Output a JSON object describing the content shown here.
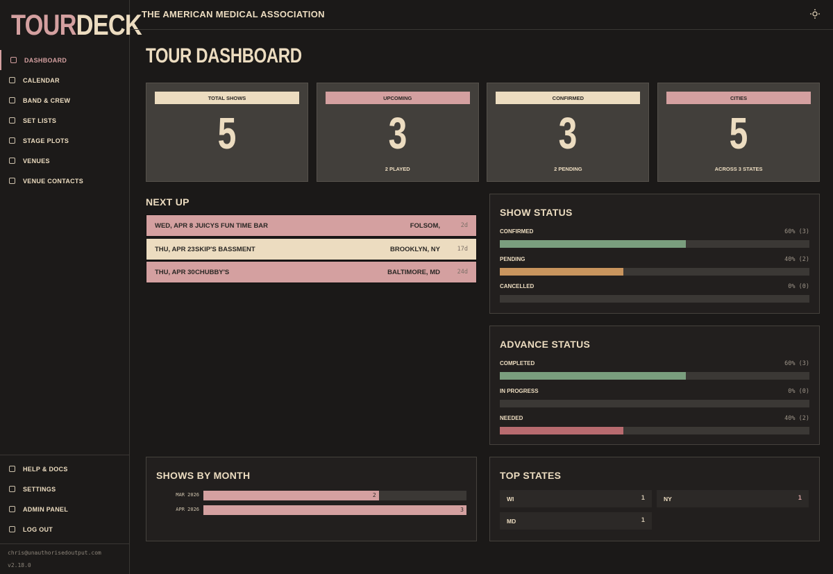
{
  "brand": {
    "first": "TOUR",
    "second": "DECK"
  },
  "nav": [
    "DASHBOARD",
    "CALENDAR",
    "BAND & CREW",
    "SET LISTS",
    "STAGE PLOTS",
    "VENUES",
    "VENUE CONTACTS"
  ],
  "nav_bottom": [
    "HELP & DOCS",
    "SETTINGS",
    "ADMIN PANEL",
    "LOG OUT"
  ],
  "user": {
    "email": "chris@unauthorisedoutput.com",
    "version": "v2.18.0"
  },
  "header": {
    "band": "THE AMERICAN MEDICAL ASSOCIATION"
  },
  "page_title": "TOUR DASHBOARD",
  "stats": [
    {
      "label": "TOTAL SHOWS",
      "value": 5
    },
    {
      "label": "UPCOMING",
      "value": 3,
      "sub": "2 PLAYED"
    },
    {
      "label": "CONFIRMED",
      "value": 3,
      "sub": "2 PENDING"
    },
    {
      "label": "CITIES",
      "value": 5,
      "sub": "ACROSS 3 STATES"
    }
  ],
  "next_up": {
    "title": "NEXT UP",
    "rows": [
      {
        "date": "WED, APR 8",
        "venue": "JUICYS FUN TIME BAR",
        "city": "FOLSOM,",
        "days": "2d"
      },
      {
        "date": "THU, APR 23",
        "venue": "SKIP'S BASSMENT",
        "city": "BROOKLYN, NY",
        "days": "17d"
      },
      {
        "date": "THU, APR 30",
        "venue": "CHUBBY'S",
        "city": "BALTIMORE, MD",
        "days": "24d"
      }
    ]
  },
  "show_status": {
    "title": "SHOW STATUS",
    "items": [
      {
        "label": "CONFIRMED",
        "value": 60,
        "value_label": "60% (3)",
        "color": "#7a9e7e"
      },
      {
        "label": "PENDING",
        "value": 40,
        "value_label": "40% (2)",
        "color": "#c9955e"
      },
      {
        "label": "CANCELLED",
        "value": 0,
        "value_label": "0% (0)",
        "color": "#b86b6f"
      }
    ]
  },
  "advance_status": {
    "title": "ADVANCE STATUS",
    "items": [
      {
        "label": "COMPLETED",
        "value": 60,
        "value_label": "60% (3)",
        "color": "#7a9e7e"
      },
      {
        "label": "IN PROGRESS",
        "value": 0,
        "value_label": "0% (0)",
        "color": "#c9955e"
      },
      {
        "label": "NEEDED",
        "value": 40,
        "value_label": "40% (2)",
        "color": "#b86b6f"
      }
    ]
  },
  "shows_by_month": {
    "title": "SHOWS BY MONTH",
    "categories": [
      "MAR 2026",
      "APR 2026"
    ],
    "values": [
      2,
      3
    ],
    "color": "#d4a0a0"
  },
  "top_states": {
    "title": "TOP STATES",
    "items": [
      {
        "state": "WI",
        "count": 1
      },
      {
        "state": "NY",
        "count": 1
      },
      {
        "state": "MD",
        "count": 1
      }
    ]
  }
}
